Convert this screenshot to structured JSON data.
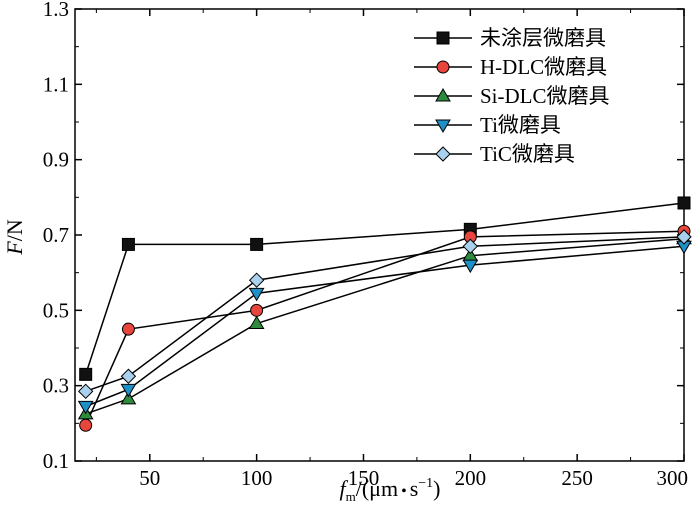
{
  "chart_data": {
    "type": "line",
    "x": [
      20,
      40,
      100,
      200,
      300
    ],
    "xlim": [
      15,
      300
    ],
    "ylim": [
      0.1,
      1.3
    ],
    "xticks": [
      "50",
      "100",
      "150",
      "200",
      "250",
      "300"
    ],
    "yticks": [
      "0.1",
      "0.3",
      "0.5",
      "0.7",
      "0.9",
      "1.1",
      "1.3"
    ],
    "xlabel": {
      "symbol": "f",
      "sub": "m",
      "unit": "/(μm",
      "dot": "•",
      "unit2": "s",
      "sup": "−1",
      "close": ")"
    },
    "ylabel": {
      "symbol": "F",
      "unit": "/N"
    },
    "legend_position": "top-right",
    "grid": false,
    "series": [
      {
        "name": "未涂层微磨具",
        "marker": "square",
        "color": "#111111",
        "values": [
          0.33,
          0.675,
          0.675,
          0.715,
          0.785
        ]
      },
      {
        "name": "H-DLC微磨具",
        "marker": "circle",
        "color": "#e8453c",
        "values": [
          0.195,
          0.45,
          0.5,
          0.695,
          0.71
        ]
      },
      {
        "name": "Si-DLC微磨具",
        "marker": "triangle-up",
        "color": "#2e8b3e",
        "values": [
          0.225,
          0.265,
          0.465,
          0.645,
          0.69
        ]
      },
      {
        "name": "Ti微磨具",
        "marker": "triangle-down",
        "color": "#1e90c8",
        "values": [
          0.245,
          0.29,
          0.545,
          0.62,
          0.67
        ]
      },
      {
        "name": "TiC微磨具",
        "marker": "diamond",
        "color": "#a9d0ec",
        "values": [
          0.285,
          0.325,
          0.58,
          0.67,
          0.695
        ]
      }
    ]
  }
}
